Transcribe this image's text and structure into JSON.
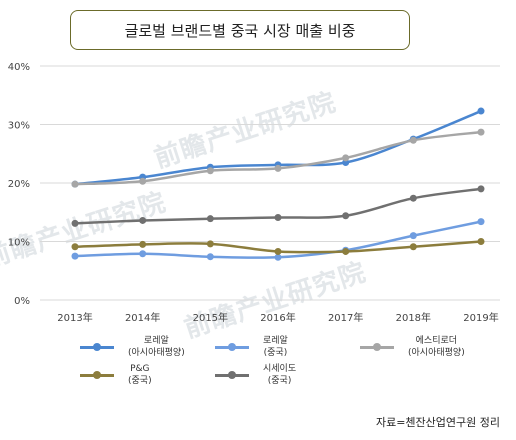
{
  "title": "글로벌 브랜드별 중국 시장 매출 비중",
  "source": "자료=첸잔산업연구원 정리",
  "watermark": "前瞻产业研究院",
  "chart_data": {
    "type": "line",
    "x": [
      "2013年",
      "2014年",
      "2015年",
      "2016年",
      "2017年",
      "2018年",
      "2019年"
    ],
    "ylim": [
      0,
      40
    ],
    "yticks": [
      "0%",
      "10%",
      "20%",
      "30%",
      "40%"
    ],
    "grid": true,
    "legend_position": "bottom",
    "series": [
      {
        "name": "로레알\n(아시아태평양)",
        "color": "#4a86d0",
        "values": [
          19.8,
          21.0,
          22.7,
          23.1,
          23.5,
          27.5,
          32.3
        ]
      },
      {
        "name": "로레알\n(중국)",
        "color": "#6f9de0",
        "values": [
          7.5,
          7.9,
          7.4,
          7.3,
          8.5,
          11.0,
          13.4
        ]
      },
      {
        "name": "에스티로더\n(아시아태평양)",
        "color": "#a6a6a6",
        "values": [
          19.8,
          20.3,
          22.1,
          22.5,
          24.3,
          27.3,
          28.7
        ]
      },
      {
        "name": "P&G\n(중국)",
        "color": "#8c7d3d",
        "values": [
          9.1,
          9.5,
          9.6,
          8.3,
          8.3,
          9.1,
          10.0
        ]
      },
      {
        "name": "시세이도\n(중국)",
        "color": "#707070",
        "values": [
          13.1,
          13.6,
          13.9,
          14.1,
          14.4,
          17.4,
          19.0
        ]
      }
    ]
  }
}
